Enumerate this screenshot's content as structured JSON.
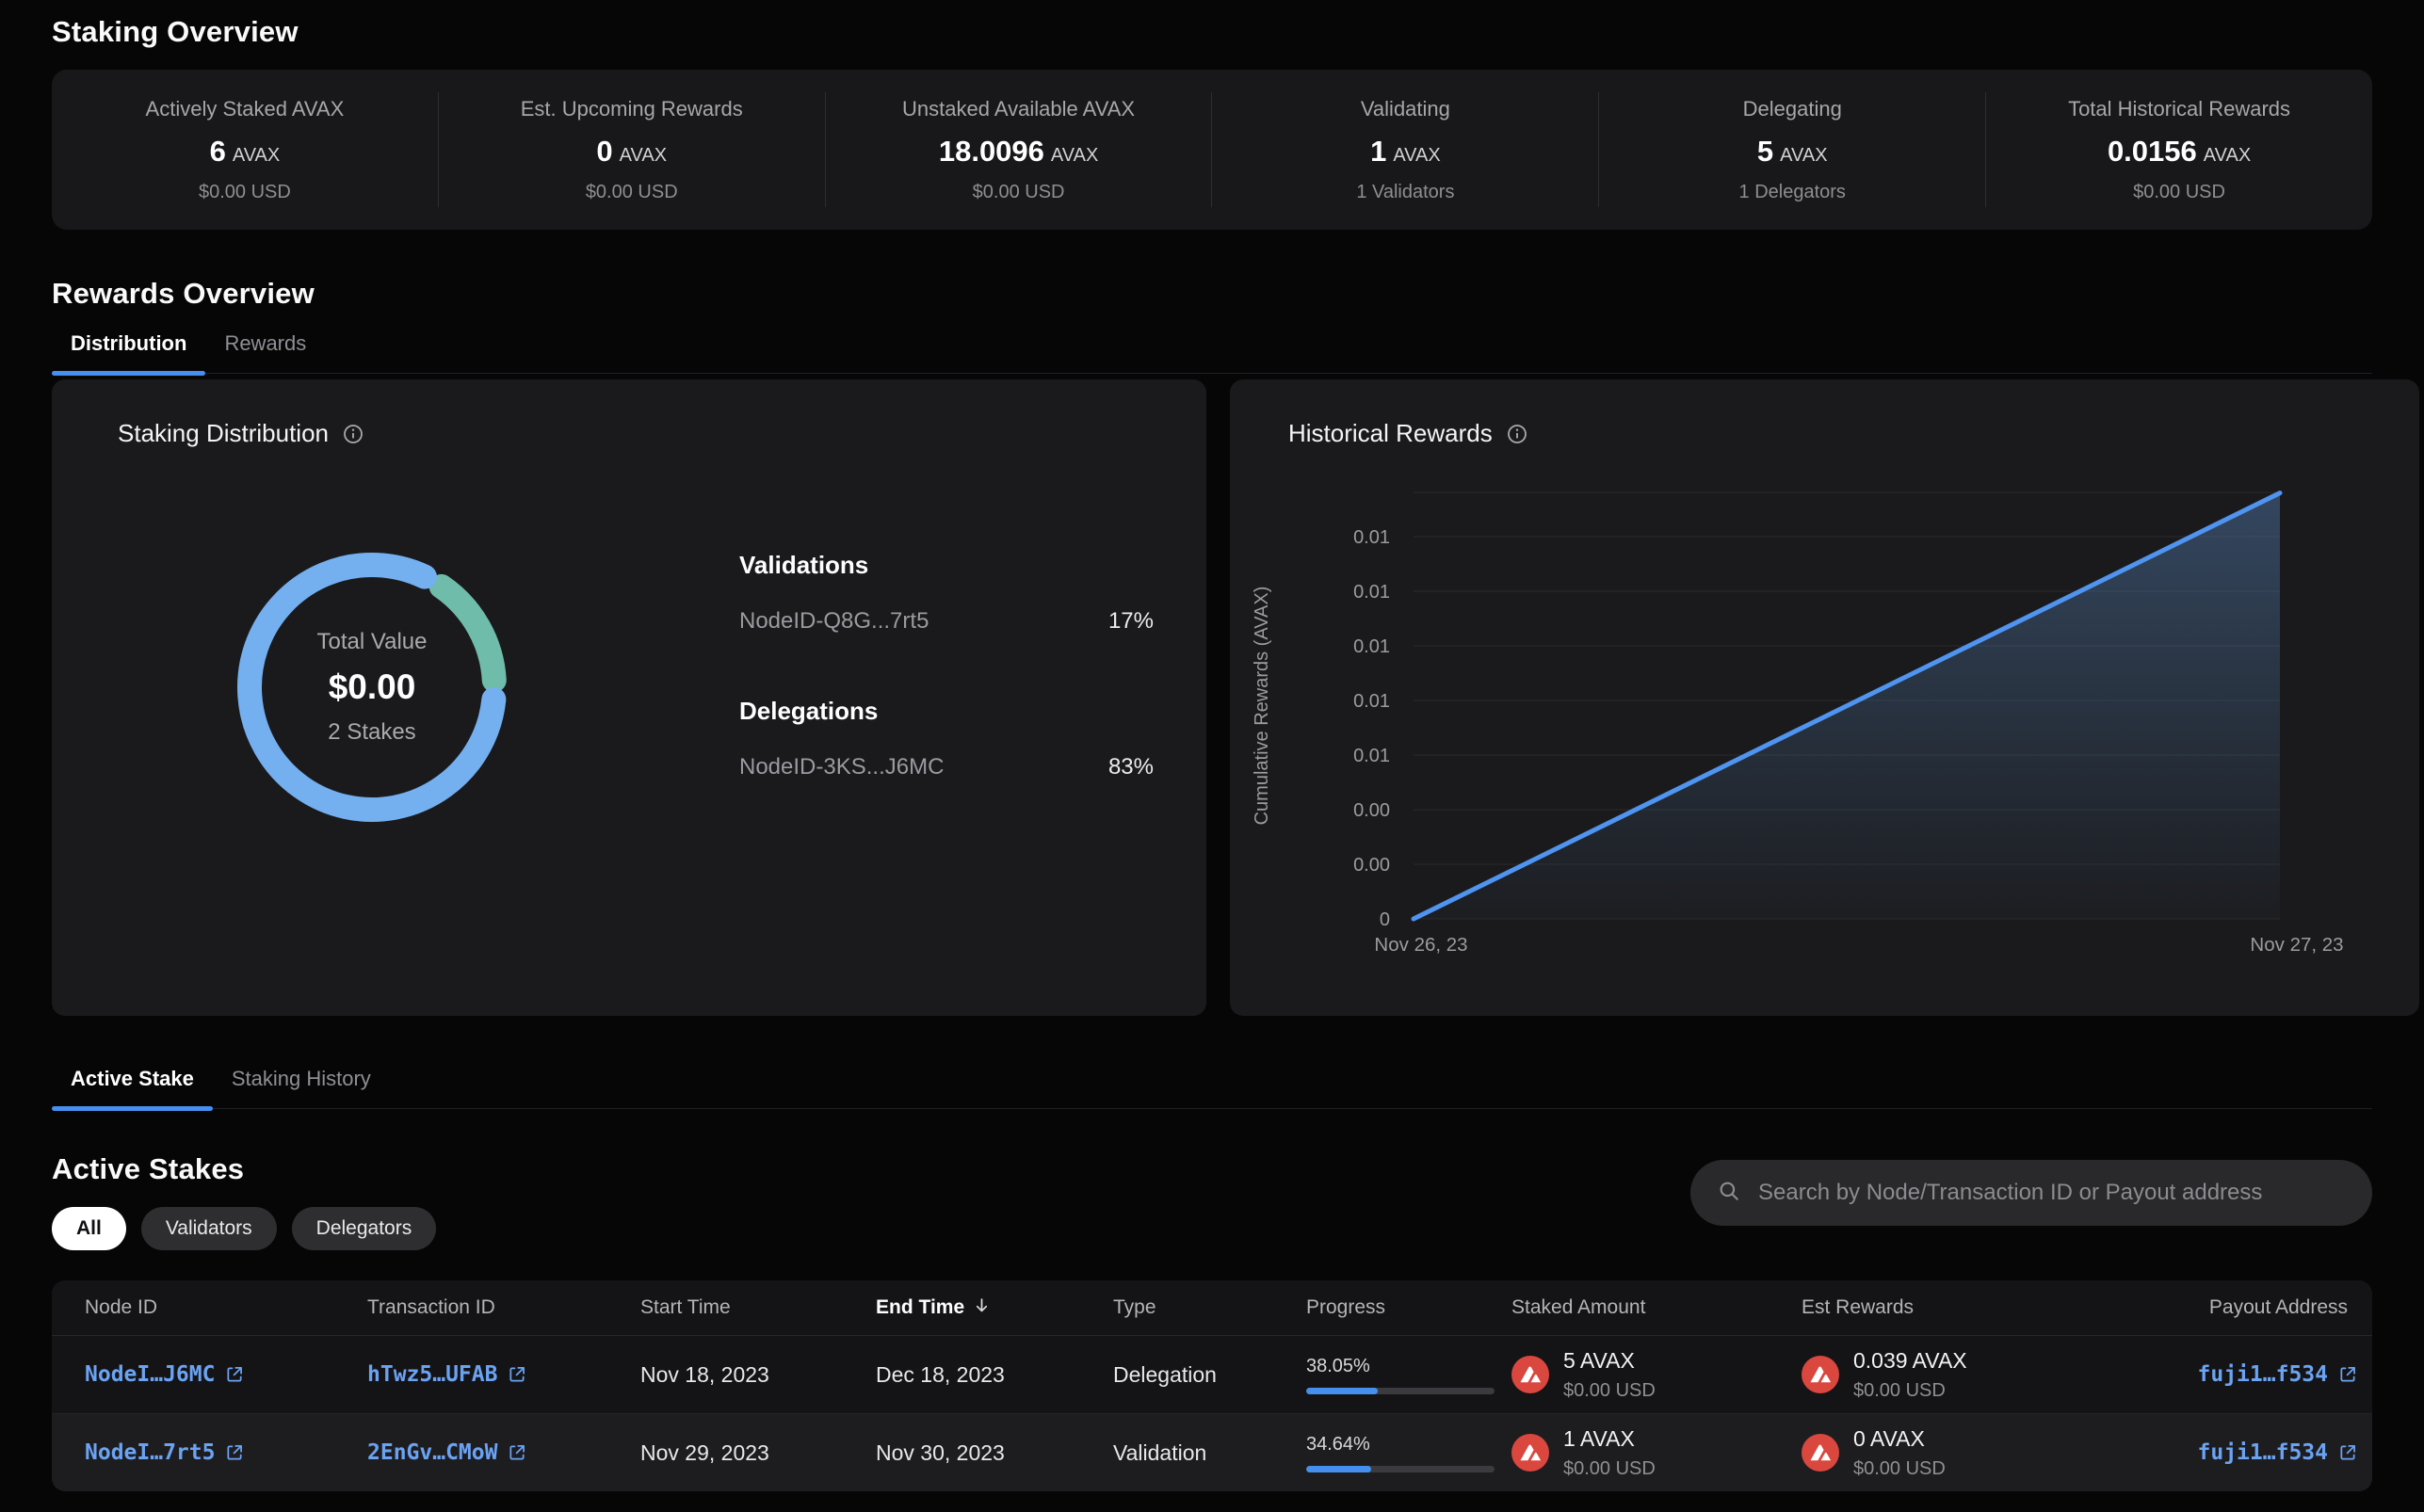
{
  "staking_overview": {
    "heading": "Staking Overview",
    "stats": [
      {
        "label": "Actively Staked AVAX",
        "value": "6",
        "unit": "AVAX",
        "sub": "$0.00 USD"
      },
      {
        "label": "Est. Upcoming Rewards",
        "value": "0",
        "unit": "AVAX",
        "sub": "$0.00 USD"
      },
      {
        "label": "Unstaked Available AVAX",
        "value": "18.0096",
        "unit": "AVAX",
        "sub": "$0.00 USD"
      },
      {
        "label": "Validating",
        "value": "1",
        "unit": "AVAX",
        "sub": "1 Validators"
      },
      {
        "label": "Delegating",
        "value": "5",
        "unit": "AVAX",
        "sub": "1 Delegators"
      },
      {
        "label": "Total Historical Rewards",
        "value": "0.0156",
        "unit": "AVAX",
        "sub": "$0.00 USD"
      }
    ]
  },
  "rewards_overview": {
    "heading": "Rewards Overview",
    "tabs": [
      {
        "label": "Distribution"
      },
      {
        "label": "Rewards"
      }
    ],
    "distribution_panel": {
      "title": "Staking Distribution",
      "center": {
        "label": "Total Value",
        "value": "$0.00",
        "sub": "2 Stakes"
      },
      "groups": [
        {
          "heading": "Validations",
          "items": [
            {
              "id": "NodeID-Q8G...7rt5",
              "pct": "17%"
            }
          ]
        },
        {
          "heading": "Delegations",
          "items": [
            {
              "id": "NodeID-3KS...J6MC",
              "pct": "83%"
            }
          ]
        }
      ]
    },
    "historical_panel": {
      "title": "Historical Rewards"
    }
  },
  "chart_data": [
    {
      "type": "pie",
      "donut": true,
      "title": "Staking Distribution",
      "labels": [
        "Validations NodeID-Q8G...7rt5",
        "Delegations NodeID-3KS...J6MC"
      ],
      "values": [
        17,
        83
      ],
      "colors": [
        "#6fbcaa",
        "#74aff0"
      ],
      "center_label": "Total Value",
      "center_value": "$0.00",
      "center_sub": "2 Stakes"
    },
    {
      "type": "line",
      "title": "Historical Rewards",
      "x": [
        "Nov 26, 23",
        "Nov 27, 23"
      ],
      "series": [
        {
          "name": "Cumulative Rewards (AVAX)",
          "values": [
            0,
            0.0156
          ]
        }
      ],
      "ylabel": "Cumulative Rewards (AVAX)",
      "ytick_labels": [
        "0",
        "0.00",
        "0.00",
        "0.01",
        "0.01",
        "0.01",
        "0.01",
        "0.01"
      ],
      "ytick_value_step": 0.002,
      "ylim": [
        0,
        0.016
      ],
      "grid": true,
      "legend": false,
      "line_color": "#4f94f0"
    }
  ],
  "stakes_section": {
    "tabs": [
      {
        "label": "Active Stake"
      },
      {
        "label": "Staking History"
      }
    ],
    "heading": "Active Stakes",
    "filters": [
      "All",
      "Validators",
      "Delegators"
    ],
    "active_filter": "All",
    "search_placeholder": "Search by Node/Transaction ID or Payout address",
    "table": {
      "columns": [
        "Node ID",
        "Transaction ID",
        "Start Time",
        "End Time",
        "Type",
        "Progress",
        "Staked Amount",
        "Est Rewards",
        "Payout Address"
      ],
      "sorted_column": "End Time",
      "rows": [
        {
          "node_id": "NodeI…J6MC",
          "tx_id": "hTwz5…UFAB",
          "start": "Nov 18, 2023",
          "end": "Dec 18, 2023",
          "type": "Delegation",
          "progress": "38.05%",
          "progress_pct": 38.05,
          "staked": "5 AVAX",
          "staked_usd": "$0.00 USD",
          "est": "0.039 AVAX",
          "est_usd": "$0.00 USD",
          "payout": "fuji1…f534"
        },
        {
          "node_id": "NodeI…7rt5",
          "tx_id": "2EnGv…CMoW",
          "start": "Nov 29, 2023",
          "end": "Nov 30, 2023",
          "type": "Validation",
          "progress": "34.64%",
          "progress_pct": 34.64,
          "staked": "1 AVAX",
          "staked_usd": "$0.00 USD",
          "est": "0 AVAX",
          "est_usd": "$0.00 USD",
          "payout": "fuji1…f534"
        }
      ]
    }
  },
  "colors": {
    "accent_blue": "#468ff0",
    "link_blue": "#6ba3f3",
    "donut_blue": "#74aff0",
    "donut_green": "#6fbcaa",
    "avax_red": "#d9473f",
    "panel_bg": "#1a1a1c",
    "page_bg": "#060607"
  }
}
